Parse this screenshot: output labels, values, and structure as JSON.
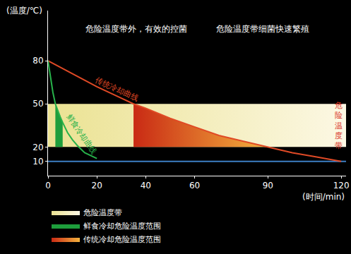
{
  "chart_data": {
    "type": "line",
    "x_label": "(时间/min)",
    "y_label": "(温度/℃)",
    "annotations": [
      "危险温度带外，有效的控菌",
      "危险温度带细菌快速繁殖",
      "危险温度带"
    ],
    "xlim": [
      0,
      122
    ],
    "ylim": [
      0,
      115
    ],
    "xticks": [
      0,
      20,
      40,
      60,
      90,
      120
    ],
    "yticks": [
      10,
      20,
      50,
      80
    ],
    "grid": false,
    "legend": "bottom left",
    "series": [
      {
        "name": "危险温度带",
        "type": "area",
        "color": "#ebe292",
        "x": [
          0,
          0,
          122,
          122,
          0
        ],
        "values": [
          20,
          50,
          50,
          20,
          20
        ]
      },
      {
        "name": "鲜食冷却危险温度范围",
        "type": "area",
        "color": "#1e9e3c",
        "x": [
          3,
          3,
          4,
          5,
          6,
          6,
          3
        ],
        "values": [
          20,
          50,
          45,
          41,
          37,
          20,
          20
        ]
      },
      {
        "name": "传统冷却危险温度范围",
        "type": "area",
        "color": "#c92a14",
        "x": [
          35,
          35,
          40,
          50,
          60,
          70,
          80,
          90,
          35
        ],
        "values": [
          20,
          50,
          47,
          40,
          34,
          28,
          24,
          20,
          20
        ]
      },
      {
        "type": "line",
        "color": "#3d7fc4",
        "x": [
          0,
          122
        ],
        "values": [
          10,
          10
        ]
      },
      {
        "name": "传统冷却曲线",
        "type": "line",
        "color": "#e04a26",
        "x": [
          0,
          10,
          20,
          30,
          35,
          40,
          50,
          60,
          70,
          80,
          90,
          100,
          110,
          120
        ],
        "values": [
          80,
          71,
          62,
          54,
          50,
          47,
          40,
          34,
          28,
          24,
          20,
          16,
          13,
          10
        ]
      },
      {
        "name": "鲜食冷却曲线",
        "type": "line",
        "color": "#27b24a",
        "x": [
          0,
          1,
          2,
          3,
          4,
          5,
          6,
          8,
          10,
          12,
          15,
          20
        ],
        "values": [
          80,
          68,
          58,
          50,
          45,
          41,
          37,
          30,
          25,
          21,
          16,
          12
        ]
      }
    ]
  }
}
